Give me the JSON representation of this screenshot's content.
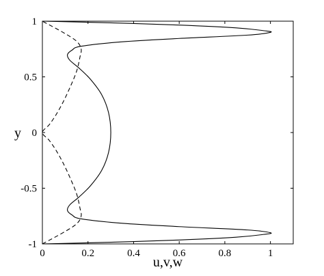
{
  "chart_data": {
    "type": "line",
    "title": "",
    "xlabel": "u,v,w",
    "ylabel": "y",
    "xlim": [
      0,
      1.1
    ],
    "ylim": [
      -1,
      1
    ],
    "xticks": [
      "0",
      "0.2",
      "0.4",
      "0.6",
      "0.8",
      "1"
    ],
    "yticks": [
      "-1",
      "-0.5",
      "0",
      "0.5",
      "1"
    ],
    "grid": false,
    "legend": "none",
    "series": [
      {
        "style": "solid",
        "color": "#000000",
        "x": [
          0.0,
          0.3,
          0.6,
          0.85,
          0.97,
          1.0,
          0.9,
          0.6,
          0.35,
          0.17,
          0.13,
          0.11,
          0.12,
          0.16,
          0.21,
          0.26,
          0.29,
          0.3,
          0.29,
          0.26,
          0.21,
          0.16,
          0.12,
          0.11,
          0.13,
          0.17,
          0.35,
          0.6,
          0.9,
          1.0,
          0.97,
          0.85,
          0.6,
          0.3,
          0.0
        ],
        "y": [
          -1.0,
          -0.985,
          -0.965,
          -0.94,
          -0.915,
          -0.9,
          -0.875,
          -0.845,
          -0.815,
          -0.775,
          -0.74,
          -0.7,
          -0.65,
          -0.58,
          -0.48,
          -0.34,
          -0.18,
          0.0,
          0.18,
          0.34,
          0.48,
          0.58,
          0.65,
          0.7,
          0.74,
          0.775,
          0.815,
          0.845,
          0.875,
          0.9,
          0.915,
          0.94,
          0.965,
          0.985,
          1.0
        ]
      },
      {
        "style": "dashed",
        "color": "#000000",
        "x": [
          0.0,
          0.09,
          0.15,
          0.17,
          0.165,
          0.15,
          0.12,
          0.09,
          0.06,
          0.03,
          0.0,
          0.03,
          0.06,
          0.09,
          0.12,
          0.15,
          0.165,
          0.17,
          0.15,
          0.09,
          0.0
        ],
        "y": [
          -1.0,
          -0.9,
          -0.82,
          -0.75,
          -0.68,
          -0.55,
          -0.4,
          -0.27,
          -0.16,
          -0.07,
          0.0,
          0.07,
          0.16,
          0.27,
          0.4,
          0.55,
          0.68,
          0.75,
          0.82,
          0.9,
          1.0
        ]
      }
    ]
  }
}
